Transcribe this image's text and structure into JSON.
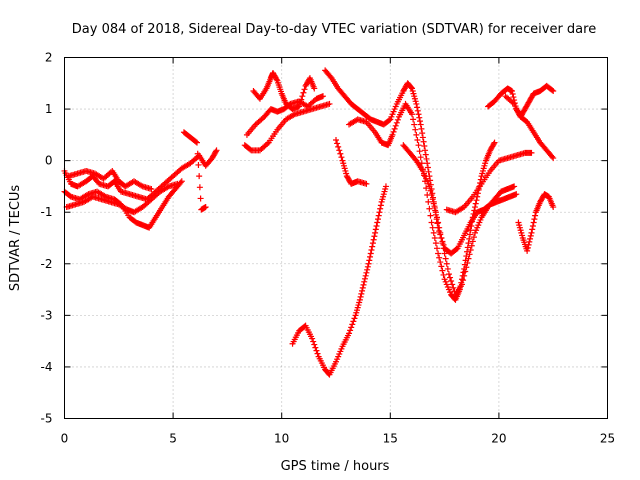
{
  "chart_data": {
    "type": "scatter",
    "title": "Day 084 of 2018, Sidereal Day-to-day VTEC variation (SDTVAR) for receiver dare",
    "xlabel": "GPS time / hours",
    "ylabel": "SDTVAR / TECUs",
    "xlim": [
      0,
      25
    ],
    "ylim": [
      -5,
      2
    ],
    "xticks": [
      "0",
      "5",
      "10",
      "15",
      "20",
      "25"
    ],
    "yticks": [
      "-5",
      "-4",
      "-3",
      "-2",
      "-1",
      "0",
      "1",
      "2"
    ],
    "grid": true,
    "marker": "plus",
    "color": "#ff0000",
    "series": [
      {
        "points": [
          [
            0.0,
            -0.2
          ],
          [
            0.3,
            -0.45
          ],
          [
            0.6,
            -0.5
          ],
          [
            1.0,
            -0.4
          ],
          [
            1.3,
            -0.3
          ],
          [
            1.6,
            -0.45
          ],
          [
            2.0,
            -0.5
          ],
          [
            2.3,
            -0.4
          ],
          [
            2.6,
            -0.6
          ],
          [
            3.0,
            -0.65
          ],
          [
            3.4,
            -0.7
          ],
          [
            3.8,
            -0.75
          ],
          [
            4.2,
            -0.6
          ],
          [
            4.6,
            -0.45
          ],
          [
            5.0,
            -0.3
          ],
          [
            5.4,
            -0.15
          ],
          [
            5.8,
            -0.05
          ],
          [
            6.2,
            0.1
          ],
          [
            6.5,
            -0.1
          ],
          [
            6.8,
            0.05
          ],
          [
            7.0,
            0.2
          ]
        ]
      },
      {
        "points": [
          [
            0.0,
            -0.6
          ],
          [
            0.3,
            -0.7
          ],
          [
            0.7,
            -0.75
          ],
          [
            1.1,
            -0.65
          ],
          [
            1.5,
            -0.6
          ],
          [
            1.9,
            -0.7
          ],
          [
            2.3,
            -0.75
          ],
          [
            2.6,
            -0.85
          ],
          [
            3.0,
            -1.1
          ],
          [
            3.3,
            -1.2
          ],
          [
            3.6,
            -1.25
          ],
          [
            3.9,
            -1.3
          ],
          [
            4.2,
            -1.1
          ],
          [
            4.5,
            -0.9
          ],
          [
            4.8,
            -0.7
          ],
          [
            5.1,
            -0.55
          ],
          [
            5.4,
            -0.4
          ]
        ]
      },
      {
        "points": [
          [
            0.1,
            -0.9
          ],
          [
            0.5,
            -0.85
          ],
          [
            0.9,
            -0.8
          ],
          [
            1.3,
            -0.7
          ],
          [
            1.7,
            -0.75
          ],
          [
            2.1,
            -0.8
          ],
          [
            2.5,
            -0.85
          ],
          [
            2.9,
            -0.95
          ],
          [
            3.2,
            -1.0
          ],
          [
            3.6,
            -0.9
          ],
          [
            4.0,
            -0.75
          ],
          [
            4.4,
            -0.6
          ],
          [
            4.8,
            -0.5
          ],
          [
            5.2,
            -0.45
          ]
        ]
      },
      {
        "points": [
          [
            0.2,
            -0.3
          ],
          [
            0.6,
            -0.25
          ],
          [
            1.0,
            -0.2
          ],
          [
            1.4,
            -0.25
          ],
          [
            1.8,
            -0.35
          ],
          [
            2.2,
            -0.2
          ],
          [
            2.5,
            -0.4
          ],
          [
            2.8,
            -0.5
          ],
          [
            3.2,
            -0.4
          ],
          [
            3.6,
            -0.5
          ],
          [
            4.0,
            -0.55
          ]
        ]
      },
      {
        "points": [
          [
            5.5,
            0.55
          ],
          [
            5.8,
            0.45
          ],
          [
            6.1,
            0.35
          ],
          [
            6.3,
            -0.95
          ],
          [
            6.5,
            -0.9
          ]
        ]
      },
      {
        "points": [
          [
            8.3,
            0.3
          ],
          [
            8.6,
            0.2
          ],
          [
            9.0,
            0.2
          ],
          [
            9.4,
            0.35
          ],
          [
            9.8,
            0.6
          ],
          [
            10.2,
            0.8
          ],
          [
            10.6,
            0.9
          ],
          [
            11.0,
            0.95
          ],
          [
            11.4,
            1.0
          ],
          [
            11.8,
            1.05
          ],
          [
            12.2,
            1.1
          ]
        ]
      },
      {
        "points": [
          [
            8.4,
            0.5
          ],
          [
            8.8,
            0.7
          ],
          [
            9.2,
            0.85
          ],
          [
            9.5,
            1.0
          ],
          [
            9.8,
            0.95
          ],
          [
            10.1,
            1.0
          ],
          [
            10.4,
            1.1
          ],
          [
            10.8,
            1.15
          ],
          [
            11.2,
            1.05
          ],
          [
            11.6,
            1.2
          ],
          [
            11.9,
            1.25
          ]
        ]
      },
      {
        "points": [
          [
            8.7,
            1.35
          ],
          [
            9.0,
            1.2
          ],
          [
            9.3,
            1.4
          ],
          [
            9.5,
            1.6
          ],
          [
            9.6,
            1.7
          ],
          [
            9.8,
            1.55
          ],
          [
            10.0,
            1.3
          ],
          [
            10.2,
            1.1
          ],
          [
            10.5,
            1.0
          ],
          [
            10.8,
            1.05
          ],
          [
            11.1,
            1.45
          ],
          [
            11.3,
            1.6
          ],
          [
            11.5,
            1.4
          ]
        ]
      },
      {
        "points": [
          [
            12.0,
            1.75
          ],
          [
            12.3,
            1.6
          ],
          [
            12.6,
            1.4
          ],
          [
            12.9,
            1.25
          ],
          [
            13.2,
            1.1
          ],
          [
            13.5,
            1.0
          ],
          [
            13.8,
            0.9
          ],
          [
            14.1,
            0.8
          ],
          [
            14.4,
            0.75
          ],
          [
            14.7,
            0.7
          ],
          [
            15.0,
            0.8
          ],
          [
            15.3,
            1.1
          ],
          [
            15.6,
            1.35
          ],
          [
            15.8,
            1.5
          ],
          [
            16.0,
            1.4
          ],
          [
            16.2,
            1.1
          ],
          [
            16.4,
            0.7
          ],
          [
            16.6,
            0.2
          ],
          [
            16.8,
            -0.3
          ],
          [
            17.0,
            -0.8
          ],
          [
            17.2,
            -1.3
          ],
          [
            17.5,
            -1.7
          ],
          [
            17.8,
            -1.8
          ],
          [
            18.1,
            -1.7
          ],
          [
            18.4,
            -1.45
          ],
          [
            18.7,
            -1.2
          ],
          [
            19.0,
            -1.0
          ],
          [
            19.3,
            -0.95
          ],
          [
            19.6,
            -0.85
          ],
          [
            19.9,
            -0.8
          ],
          [
            20.2,
            -0.75
          ],
          [
            20.5,
            -0.7
          ],
          [
            20.8,
            -0.65
          ]
        ]
      },
      {
        "points": [
          [
            13.1,
            0.7
          ],
          [
            13.5,
            0.8
          ],
          [
            13.9,
            0.75
          ],
          [
            14.3,
            0.55
          ],
          [
            14.6,
            0.35
          ],
          [
            14.9,
            0.3
          ],
          [
            15.1,
            0.5
          ],
          [
            15.4,
            0.85
          ],
          [
            15.7,
            1.1
          ],
          [
            16.0,
            0.9
          ],
          [
            16.3,
            0.3
          ],
          [
            16.6,
            -0.4
          ],
          [
            16.9,
            -1.2
          ],
          [
            17.2,
            -1.8
          ],
          [
            17.5,
            -2.3
          ],
          [
            17.8,
            -2.6
          ],
          [
            18.0,
            -2.7
          ],
          [
            18.2,
            -2.5
          ],
          [
            18.4,
            -2.1
          ],
          [
            18.6,
            -1.6
          ],
          [
            18.8,
            -1.1
          ],
          [
            19.0,
            -0.7
          ],
          [
            19.2,
            -0.3
          ],
          [
            19.4,
            0.0
          ],
          [
            19.6,
            0.2
          ],
          [
            19.8,
            0.35
          ]
        ]
      },
      {
        "points": [
          [
            15.6,
            0.3
          ],
          [
            15.9,
            0.15
          ],
          [
            16.2,
            0.0
          ],
          [
            16.5,
            -0.2
          ],
          [
            16.8,
            -0.5
          ],
          [
            17.1,
            -1.0
          ],
          [
            17.4,
            -1.6
          ],
          [
            17.7,
            -2.2
          ],
          [
            18.0,
            -2.6
          ],
          [
            18.3,
            -2.4
          ],
          [
            18.6,
            -1.9
          ],
          [
            18.9,
            -1.4
          ],
          [
            19.2,
            -1.1
          ],
          [
            19.5,
            -0.9
          ],
          [
            19.8,
            -0.75
          ],
          [
            20.1,
            -0.6
          ],
          [
            20.4,
            -0.55
          ],
          [
            20.7,
            -0.5
          ]
        ]
      },
      {
        "points": [
          [
            17.6,
            -0.95
          ],
          [
            18.0,
            -1.0
          ],
          [
            18.4,
            -0.9
          ],
          [
            18.8,
            -0.7
          ],
          [
            19.2,
            -0.45
          ],
          [
            19.6,
            -0.2
          ],
          [
            20.0,
            0.0
          ],
          [
            20.4,
            0.05
          ],
          [
            20.8,
            0.1
          ],
          [
            21.2,
            0.15
          ],
          [
            21.5,
            0.15
          ]
        ]
      },
      {
        "points": [
          [
            19.5,
            1.05
          ],
          [
            19.8,
            1.15
          ],
          [
            20.1,
            1.3
          ],
          [
            20.4,
            1.4
          ],
          [
            20.6,
            1.35
          ],
          [
            20.8,
            1.0
          ],
          [
            21.0,
            0.85
          ],
          [
            21.2,
            1.0
          ],
          [
            21.4,
            1.15
          ],
          [
            21.6,
            1.3
          ],
          [
            21.9,
            1.35
          ],
          [
            22.2,
            1.45
          ],
          [
            22.5,
            1.35
          ]
        ]
      },
      {
        "points": [
          [
            20.3,
            1.25
          ],
          [
            20.7,
            1.1
          ],
          [
            21.0,
            0.85
          ],
          [
            21.3,
            0.75
          ],
          [
            21.6,
            0.55
          ],
          [
            21.9,
            0.35
          ],
          [
            22.2,
            0.2
          ],
          [
            22.5,
            0.05
          ]
        ]
      },
      {
        "points": [
          [
            20.9,
            -1.2
          ],
          [
            21.1,
            -1.5
          ],
          [
            21.3,
            -1.75
          ],
          [
            21.5,
            -1.4
          ],
          [
            21.7,
            -1.0
          ],
          [
            21.9,
            -0.8
          ],
          [
            22.1,
            -0.65
          ],
          [
            22.3,
            -0.7
          ],
          [
            22.5,
            -0.9
          ]
        ]
      },
      {
        "points": [
          [
            10.5,
            -3.55
          ],
          [
            10.8,
            -3.3
          ],
          [
            11.1,
            -3.2
          ],
          [
            11.4,
            -3.45
          ],
          [
            11.7,
            -3.8
          ],
          [
            12.0,
            -4.05
          ],
          [
            12.2,
            -4.15
          ],
          [
            12.5,
            -3.9
          ],
          [
            12.8,
            -3.6
          ],
          [
            13.1,
            -3.35
          ],
          [
            13.4,
            -3.0
          ],
          [
            13.6,
            -2.7
          ],
          [
            13.8,
            -2.35
          ],
          [
            14.0,
            -2.0
          ],
          [
            14.2,
            -1.6
          ],
          [
            14.4,
            -1.2
          ],
          [
            14.6,
            -0.8
          ],
          [
            14.8,
            -0.5
          ]
        ]
      },
      {
        "points": [
          [
            12.5,
            0.4
          ],
          [
            12.8,
            0.0
          ],
          [
            13.0,
            -0.3
          ],
          [
            13.2,
            -0.45
          ],
          [
            13.5,
            -0.4
          ],
          [
            13.9,
            -0.45
          ]
        ]
      }
    ]
  }
}
